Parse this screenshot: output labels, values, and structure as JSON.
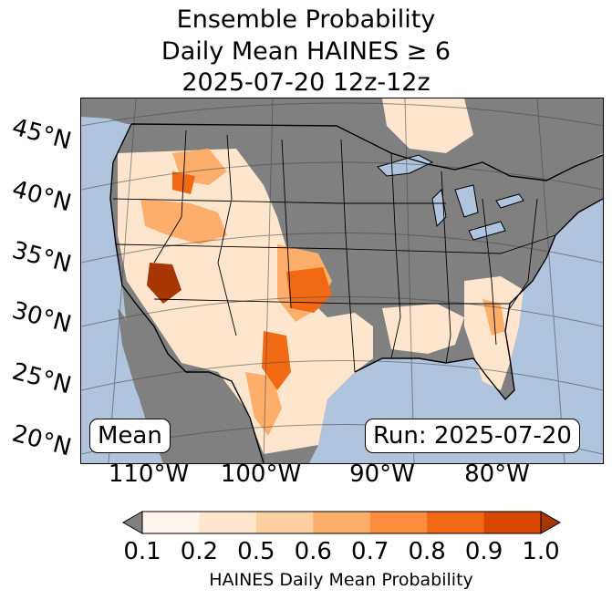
{
  "title": {
    "line1": "Ensemble Probability",
    "line2": "Daily Mean HAINES ≥ 6",
    "line3": "2025-07-20 12z-12z"
  },
  "map": {
    "lat_labels": [
      "45°N",
      "40°N",
      "35°N",
      "30°N",
      "25°N",
      "20°N"
    ],
    "lon_labels": [
      "110°W",
      "100°W",
      "90°W",
      "80°W"
    ],
    "stat_box": "Mean",
    "run_box": "Run: 2025-07-20",
    "colors": {
      "ocean": "#b0c4de",
      "land_low": "#808080",
      "border": "#000000"
    }
  },
  "colorbar": {
    "ticks": [
      "0.1",
      "0.2",
      "0.5",
      "0.6",
      "0.7",
      "0.8",
      "0.9",
      "1.0"
    ],
    "colors": [
      "#fff5eb",
      "#fee6ce",
      "#fdd0a2",
      "#fdae6b",
      "#fd8d3c",
      "#f16913",
      "#d94801"
    ],
    "under_color": "#808080",
    "over_color": "#a63603",
    "label": "HAINES Daily Mean Probability"
  }
}
